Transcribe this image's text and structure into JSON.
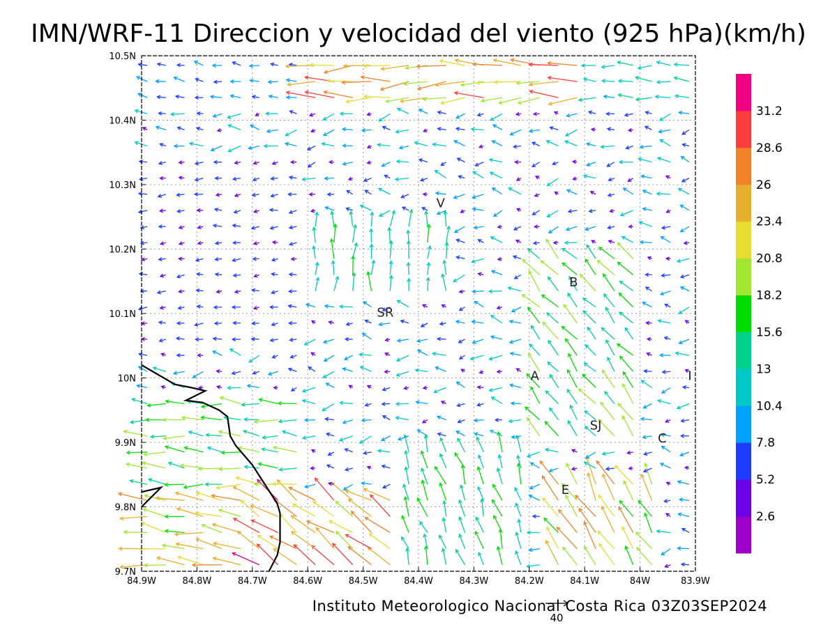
{
  "chart_data": {
    "type": "vector-field",
    "title": "IMN/WRF-11 Direccion y velocidad del viento (925 hPa)(km/h)",
    "footer": "Instituto Meteorologico Nacional Costa Rica 03Z03SEP2024",
    "x_ticks": [
      "84.9W",
      "84.8W",
      "84.7W",
      "84.6W",
      "84.5W",
      "84.4W",
      "84.3W",
      "84.2W",
      "84.1W",
      "84W",
      "83.9W"
    ],
    "y_ticks": [
      "9.7N",
      "9.8N",
      "9.9N",
      "10N",
      "10.1N",
      "10.2N",
      "10.3N",
      "10.4N",
      "10.5N"
    ],
    "xlim": [
      -84.9,
      -83.9
    ],
    "ylim": [
      9.7,
      10.5
    ],
    "grid": true,
    "reference_vector": {
      "value": 40,
      "label": "40"
    },
    "colorbar": {
      "tick_labels": [
        "2.6",
        "5.2",
        "7.8",
        "10.4",
        "13",
        "15.6",
        "18.2",
        "20.8",
        "23.4",
        "26",
        "28.6",
        "31.2"
      ],
      "colors": [
        "#9f00c8",
        "#6c00e6",
        "#1e3cff",
        "#00a0ff",
        "#00c8c8",
        "#00d28c",
        "#00dc00",
        "#a0e632",
        "#e6dc32",
        "#e6af2d",
        "#f08228",
        "#fa3c3c",
        "#f00082"
      ]
    },
    "cities": [
      {
        "label": "V",
        "lon": -84.36,
        "lat": 10.265
      },
      {
        "label": "B",
        "lon": -84.12,
        "lat": 10.142
      },
      {
        "label": "SR",
        "lon": -84.46,
        "lat": 10.095
      },
      {
        "label": "A",
        "lon": -84.19,
        "lat": 9.997
      },
      {
        "label": "I",
        "lon": -83.91,
        "lat": 9.997
      },
      {
        "label": "SJ",
        "lon": -84.08,
        "lat": 9.92
      },
      {
        "label": "C",
        "lon": -83.96,
        "lat": 9.9
      },
      {
        "label": "E",
        "lon": -84.135,
        "lat": 9.82
      }
    ],
    "coastline": [
      [
        -84.9,
        10.02
      ],
      [
        -84.87,
        10.005
      ],
      [
        -84.84,
        9.99
      ],
      [
        -84.81,
        9.985
      ],
      [
        -84.785,
        9.98
      ],
      [
        -84.82,
        9.965
      ],
      [
        -84.79,
        9.962
      ],
      [
        -84.76,
        9.95
      ],
      [
        -84.745,
        9.94
      ],
      [
        -84.74,
        9.91
      ],
      [
        -84.73,
        9.895
      ],
      [
        -84.715,
        9.88
      ],
      [
        -84.7,
        9.865
      ],
      [
        -84.685,
        9.845
      ],
      [
        -84.67,
        9.825
      ],
      [
        -84.655,
        9.805
      ],
      [
        -84.65,
        9.79
      ],
      [
        -84.65,
        9.77
      ],
      [
        -84.65,
        9.745
      ],
      [
        -84.655,
        9.725
      ],
      [
        -84.67,
        9.7
      ]
    ],
    "coastline_hook": [
      [
        -84.9,
        9.8
      ],
      [
        -84.865,
        9.83
      ],
      [
        -84.9,
        9.823
      ]
    ],
    "wind_field": {
      "description": "Gridded wind vectors 0.025 deg spacing; dominant easterly flow (toward west) across region, strongest (20-30 km/h) along northern band 10.42-10.48N and southwest corner; weak variable winds in interior.",
      "base_direction_deg_toward": 180,
      "zones": [
        {
          "lon": [
            -84.6,
            -84.1
          ],
          "lat": [
            10.42,
            10.49
          ],
          "speed": 24,
          "dir": 182
        },
        {
          "lon": [
            -84.9,
            -84.6
          ],
          "lat": [
            10.42,
            10.49
          ],
          "speed": 8,
          "dir": 170
        },
        {
          "lon": [
            -84.1,
            -83.9
          ],
          "lat": [
            10.42,
            10.49
          ],
          "speed": 12,
          "dir": 180
        },
        {
          "lon": [
            -84.9,
            -84.7
          ],
          "lat": [
            9.7,
            9.82
          ],
          "speed": 22,
          "dir": 170
        },
        {
          "lon": [
            -84.7,
            -84.45
          ],
          "lat": [
            9.7,
            9.83
          ],
          "speed": 26,
          "dir": 145
        },
        {
          "lon": [
            -84.9,
            -84.6
          ],
          "lat": [
            9.82,
            9.98
          ],
          "speed": 17,
          "dir": 175
        },
        {
          "lon": [
            -84.45,
            -84.2
          ],
          "lat": [
            9.7,
            9.9
          ],
          "speed": 15,
          "dir": 110
        },
        {
          "lon": [
            -84.15,
            -83.95
          ],
          "lat": [
            9.7,
            9.85
          ],
          "speed": 22,
          "dir": 120
        },
        {
          "lon": [
            -84.2,
            -84.0
          ],
          "lat": [
            9.9,
            10.2
          ],
          "speed": 16,
          "dir": 130
        },
        {
          "lon": [
            -84.6,
            -84.35
          ],
          "lat": [
            10.13,
            10.24
          ],
          "speed": 14,
          "dir": 90
        },
        {
          "lon": [
            -84.9,
            -84.6
          ],
          "lat": [
            10.05,
            10.35
          ],
          "speed": 6,
          "dir": 185
        }
      ]
    }
  }
}
